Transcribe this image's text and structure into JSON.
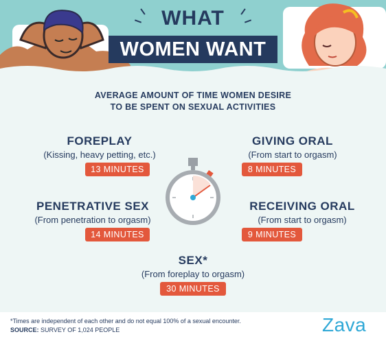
{
  "header": {
    "title_top": "WHAT",
    "title_main": "WOMEN WANT"
  },
  "subtitle": {
    "line1": "AVERAGE AMOUNT OF TIME WOMEN DESIRE",
    "line2": "TO BE SPENT ON SEXUAL ACTIVITIES"
  },
  "items": {
    "foreplay": {
      "title": "FOREPLAY",
      "desc": "(Kissing, heavy petting, etc.)",
      "time": "13 MINUTES"
    },
    "giving_oral": {
      "title": "GIVING ORAL",
      "desc": "(From start to orgasm)",
      "time": "8 MINUTES"
    },
    "penetrative_sex": {
      "title": "PENETRATIVE SEX",
      "desc": "(From penetration to orgasm)",
      "time": "14 MINUTES"
    },
    "receiving_oral": {
      "title": "RECEIVING ORAL",
      "desc": "(From start to orgasm)",
      "time": "9 MINUTES"
    },
    "sex": {
      "title": "SEX*",
      "desc": "(From foreplay to orgasm)",
      "time": "30 MINUTES"
    }
  },
  "footer": {
    "note": "*Times are independent of each other and do not equal 100% of a sexual encounter.",
    "source_label": "SOURCE:",
    "source_text": " SURVEY OF 1,024 PEOPLE",
    "brand": "Zava"
  },
  "colors": {
    "navy": "#253a5e",
    "accent": "#e3583c",
    "teal": "#8fd0cf",
    "panel": "#eef6f5",
    "brand": "#2fa8d6"
  },
  "icons": {
    "stopwatch": "stopwatch-icon",
    "man": "man-illustration",
    "woman": "woman-illustration"
  }
}
